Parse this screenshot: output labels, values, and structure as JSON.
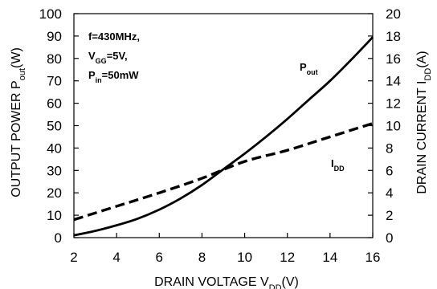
{
  "chart_data": {
    "type": "line",
    "xlabel": {
      "main": "DRAIN VOLTAGE V",
      "sub": "DD",
      "unit": "(V)"
    },
    "ylabel_left": {
      "main": "OUTPUT POWER P",
      "sub": "out",
      "unit": "(W)"
    },
    "ylabel_right": {
      "main": "DRAIN CURRENT I",
      "sub": "DD",
      "unit": "(A)"
    },
    "xlim": [
      2,
      16
    ],
    "ylim_left": [
      0,
      100
    ],
    "ylim_right": [
      0,
      20
    ],
    "x_ticks": [
      2,
      4,
      6,
      8,
      10,
      12,
      14,
      16
    ],
    "y_ticks_left": [
      0,
      10,
      20,
      30,
      40,
      50,
      60,
      70,
      80,
      90,
      100
    ],
    "y_ticks_right": [
      0,
      2,
      4,
      6,
      8,
      10,
      12,
      14,
      16,
      18,
      20
    ],
    "grid": false,
    "annotations": [
      {
        "main": "f=430MHz,"
      },
      {
        "main": "V",
        "sub": "GG",
        "rest": "=5V,"
      },
      {
        "main": "P",
        "sub": "in",
        "rest": "=50mW"
      }
    ],
    "series": [
      {
        "name": "P",
        "name_sub": "out",
        "axis": "left",
        "style": "solid",
        "x": [
          2,
          3,
          4,
          5,
          6,
          7,
          8,
          9,
          10,
          11,
          12,
          13,
          14,
          15,
          16
        ],
        "y": [
          1,
          3,
          5.5,
          8.5,
          12.5,
          17.5,
          23.5,
          30.5,
          37.5,
          45,
          53,
          61.5,
          70,
          79.5,
          89.5
        ]
      },
      {
        "name": "I",
        "name_sub": "DD",
        "axis": "right",
        "style": "dashed",
        "x": [
          2,
          4,
          6,
          8,
          10,
          12,
          14,
          16
        ],
        "y": [
          1.6,
          2.8,
          4.0,
          5.3,
          6.8,
          7.8,
          9.0,
          10.2
        ]
      }
    ]
  }
}
